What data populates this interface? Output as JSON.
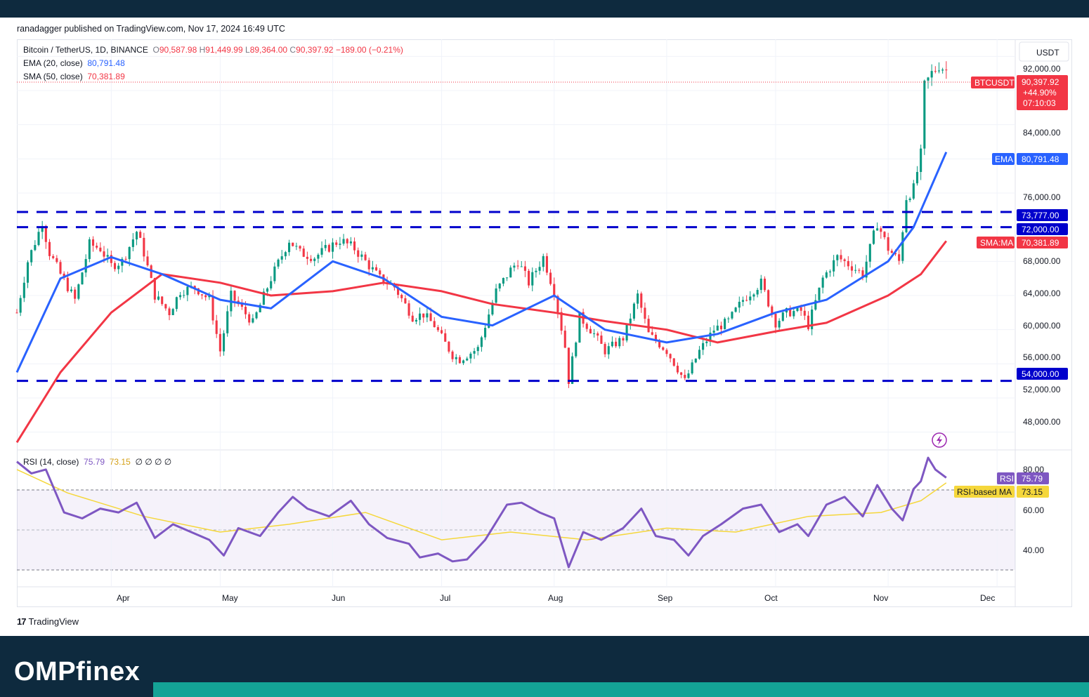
{
  "header": {
    "published": "ranadagger published on TradingView.com, Nov 17, 2024 16:49 UTC"
  },
  "legend": {
    "symbol": "Bitcoin / TetherUS, 1D, BINANCE",
    "o_label": "O",
    "o": "90,587.98",
    "h_label": "H",
    "h": "91,449.99",
    "l_label": "L",
    "l": "89,364.00",
    "c_label": "C",
    "c": "90,397.92",
    "change": "−189.00 (−0.21%)",
    "ema_label": "EMA (20, close)",
    "ema": "80,791.48",
    "sma_label": "SMA (50, close)",
    "sma": "70,381.89"
  },
  "rsi_legend": {
    "label": "RSI (14, close)",
    "value": "75.79",
    "ma": "73.15",
    "empty": "∅ ∅ ∅ ∅"
  },
  "price_scale": {
    "currency": "USDT",
    "ticks": [
      "92,000.00",
      "84,000.00",
      "76,000.00",
      "68,000.00",
      "64,000.00",
      "60,000.00",
      "56,000.00",
      "52,000.00",
      "48,000.00"
    ]
  },
  "rsi_scale": {
    "ticks": [
      "80.00",
      "60.00",
      "40.00"
    ]
  },
  "tags": {
    "symbol": "BTCUSDT",
    "price": "90,397.92",
    "pct": "+44.90%",
    "countdown": "07:10:03",
    "ema_name": "EMA",
    "ema_value": "80,791.48",
    "lvl1": "73,777.00",
    "lvl2": "72,000.00",
    "sma_name": "SMA:MA",
    "sma_value": "70,381.89",
    "lvl3": "54,000.00",
    "rsi_name": "RSI",
    "rsi_value": "75.79",
    "rsima_name": "RSI-based MA",
    "rsima_value": "73.15"
  },
  "time_axis": [
    "Apr",
    "May",
    "Jun",
    "Jul",
    "Aug",
    "Sep",
    "Oct",
    "Nov",
    "Dec"
  ],
  "footer": {
    "tv_logo": "TradingView",
    "brand": "OMPfinex"
  },
  "colors": {
    "up": "#089981",
    "down": "#f23645",
    "ema": "#2962ff",
    "sma": "#f23645",
    "levels": "#0000cc",
    "rsi": "#7e57c2",
    "rsi_ma": "#f5d73b",
    "dark": "#0e2a3e",
    "teal": "#14a396"
  },
  "chart_data": {
    "type": "candlestick",
    "symbol": "Bitcoin / TetherUS",
    "timeframe": "1D",
    "exchange": "BINANCE",
    "y_range": [
      46000,
      94000
    ],
    "x_range": [
      "2024-03-06",
      "2024-12-06"
    ],
    "x_ticks": [
      "2024-04-01",
      "2024-05-01",
      "2024-06-01",
      "2024-07-01",
      "2024-08-01",
      "2024-09-01",
      "2024-10-01",
      "2024-11-01",
      "2024-12-01"
    ],
    "last": {
      "open": 90587.98,
      "high": 91449.99,
      "low": 89364.0,
      "close": 90397.92,
      "change": -189.0,
      "change_pct": -0.21
    },
    "horizontal_levels": [
      73777,
      72000,
      54000
    ],
    "price_path": [
      [
        "2024-03-06",
        62000
      ],
      [
        "2024-03-09",
        68000
      ],
      [
        "2024-03-13",
        72500
      ],
      [
        "2024-03-15",
        69000
      ],
      [
        "2024-03-18",
        66500
      ],
      [
        "2024-03-22",
        63500
      ],
      [
        "2024-03-26",
        70000
      ],
      [
        "2024-03-29",
        69500
      ],
      [
        "2024-04-01",
        67500
      ],
      [
        "2024-04-04",
        68000
      ],
      [
        "2024-04-08",
        71500
      ],
      [
        "2024-04-10",
        69000
      ],
      [
        "2024-04-13",
        64000
      ],
      [
        "2024-04-17",
        62000
      ],
      [
        "2024-04-20",
        64500
      ],
      [
        "2024-04-24",
        65000
      ],
      [
        "2024-04-28",
        63500
      ],
      [
        "2024-05-01",
        57500
      ],
      [
        "2024-05-04",
        64000
      ],
      [
        "2024-05-10",
        60800
      ],
      [
        "2024-05-15",
        66000
      ],
      [
        "2024-05-20",
        70500
      ],
      [
        "2024-05-23",
        69000
      ],
      [
        "2024-05-27",
        68500
      ],
      [
        "2024-06-03",
        70500
      ],
      [
        "2024-06-07",
        69500
      ],
      [
        "2024-06-11",
        67500
      ],
      [
        "2024-06-14",
        66000
      ],
      [
        "2024-06-18",
        65000
      ],
      [
        "2024-06-23",
        61500
      ],
      [
        "2024-06-26",
        61800
      ],
      [
        "2024-06-29",
        60500
      ],
      [
        "2024-07-04",
        57000
      ],
      [
        "2024-07-06",
        56500
      ],
      [
        "2024-07-11",
        57800
      ],
      [
        "2024-07-16",
        64500
      ],
      [
        "2024-07-20",
        67000
      ],
      [
        "2024-07-22",
        68000
      ],
      [
        "2024-07-25",
        65500
      ],
      [
        "2024-07-29",
        68500
      ],
      [
        "2024-08-01",
        64500
      ],
      [
        "2024-08-04",
        58000
      ],
      [
        "2024-08-05",
        54000
      ],
      [
        "2024-08-08",
        61500
      ],
      [
        "2024-08-12",
        59500
      ],
      [
        "2024-08-15",
        57500
      ],
      [
        "2024-08-20",
        59000
      ],
      [
        "2024-08-24",
        64000
      ],
      [
        "2024-08-27",
        59500
      ],
      [
        "2024-09-01",
        57500
      ],
      [
        "2024-09-06",
        54000
      ],
      [
        "2024-09-10",
        57500
      ],
      [
        "2024-09-14",
        60000
      ],
      [
        "2024-09-18",
        61000
      ],
      [
        "2024-09-22",
        63500
      ],
      [
        "2024-09-27",
        65500
      ],
      [
        "2024-10-01",
        60800
      ],
      [
        "2024-10-04",
        62000
      ],
      [
        "2024-10-08",
        62200
      ],
      [
        "2024-10-10",
        60500
      ],
      [
        "2024-10-14",
        66000
      ],
      [
        "2024-10-18",
        68500
      ],
      [
        "2024-10-22",
        67400
      ],
      [
        "2024-10-25",
        66500
      ],
      [
        "2024-10-29",
        72500
      ],
      [
        "2024-11-01",
        69500
      ],
      [
        "2024-11-04",
        68000
      ],
      [
        "2024-11-06",
        75500
      ],
      [
        "2024-11-08",
        76500
      ],
      [
        "2024-11-10",
        80500
      ],
      [
        "2024-11-11",
        88500
      ],
      [
        "2024-11-13",
        90000
      ],
      [
        "2024-11-15",
        91000
      ],
      [
        "2024-11-17",
        90397.92
      ]
    ],
    "series": [
      {
        "name": "EMA (20, close)",
        "last": 80791.48,
        "points": [
          [
            "2024-03-06",
            55000
          ],
          [
            "2024-03-18",
            66000
          ],
          [
            "2024-04-01",
            68500
          ],
          [
            "2024-04-15",
            66500
          ],
          [
            "2024-05-01",
            63500
          ],
          [
            "2024-05-15",
            62500
          ],
          [
            "2024-06-01",
            68000
          ],
          [
            "2024-06-15",
            66000
          ],
          [
            "2024-07-01",
            61500
          ],
          [
            "2024-07-15",
            60500
          ],
          [
            "2024-08-01",
            64000
          ],
          [
            "2024-08-15",
            60000
          ],
          [
            "2024-09-01",
            58500
          ],
          [
            "2024-09-15",
            59500
          ],
          [
            "2024-10-01",
            62000
          ],
          [
            "2024-10-15",
            63500
          ],
          [
            "2024-11-01",
            68000
          ],
          [
            "2024-11-08",
            72000
          ],
          [
            "2024-11-17",
            80791.48
          ]
        ]
      },
      {
        "name": "SMA (50, close)",
        "last": 70381.89,
        "points": [
          [
            "2024-03-06",
            46800
          ],
          [
            "2024-03-18",
            55000
          ],
          [
            "2024-04-01",
            62000
          ],
          [
            "2024-04-15",
            66500
          ],
          [
            "2024-05-01",
            65500
          ],
          [
            "2024-05-15",
            64000
          ],
          [
            "2024-06-01",
            64500
          ],
          [
            "2024-06-15",
            65500
          ],
          [
            "2024-07-01",
            64500
          ],
          [
            "2024-07-15",
            63000
          ],
          [
            "2024-08-01",
            62000
          ],
          [
            "2024-08-15",
            61000
          ],
          [
            "2024-09-01",
            60000
          ],
          [
            "2024-09-15",
            58500
          ],
          [
            "2024-10-01",
            59800
          ],
          [
            "2024-10-15",
            60800
          ],
          [
            "2024-11-01",
            64000
          ],
          [
            "2024-11-10",
            66500
          ],
          [
            "2024-11-17",
            70381.89
          ]
        ]
      }
    ],
    "rsi": {
      "label": "RSI (14, close)",
      "value": 75.79,
      "ma": 73.15,
      "bands": [
        70,
        50,
        30
      ],
      "y_range": [
        20,
        90
      ],
      "points": [
        [
          "2024-03-06",
          84
        ],
        [
          "2024-03-10",
          78
        ],
        [
          "2024-03-14",
          80
        ],
        [
          "2024-03-19",
          58
        ],
        [
          "2024-03-24",
          55
        ],
        [
          "2024-03-29",
          60
        ],
        [
          "2024-04-03",
          58
        ],
        [
          "2024-04-08",
          63
        ],
        [
          "2024-04-13",
          45
        ],
        [
          "2024-04-18",
          52
        ],
        [
          "2024-04-23",
          48
        ],
        [
          "2024-04-28",
          44
        ],
        [
          "2024-05-02",
          36
        ],
        [
          "2024-05-06",
          50
        ],
        [
          "2024-05-12",
          46
        ],
        [
          "2024-05-17",
          58
        ],
        [
          "2024-05-21",
          66
        ],
        [
          "2024-05-25",
          60
        ],
        [
          "2024-05-31",
          56
        ],
        [
          "2024-06-06",
          64
        ],
        [
          "2024-06-11",
          52
        ],
        [
          "2024-06-16",
          45
        ],
        [
          "2024-06-22",
          42
        ],
        [
          "2024-06-25",
          35
        ],
        [
          "2024-06-30",
          37
        ],
        [
          "2024-07-04",
          33
        ],
        [
          "2024-07-08",
          34
        ],
        [
          "2024-07-13",
          44
        ],
        [
          "2024-07-19",
          62
        ],
        [
          "2024-07-23",
          63
        ],
        [
          "2024-07-28",
          58
        ],
        [
          "2024-08-01",
          55
        ],
        [
          "2024-08-05",
          30
        ],
        [
          "2024-08-09",
          48
        ],
        [
          "2024-08-14",
          44
        ],
        [
          "2024-08-20",
          50
        ],
        [
          "2024-08-25",
          60
        ],
        [
          "2024-08-29",
          46
        ],
        [
          "2024-09-03",
          44
        ],
        [
          "2024-09-07",
          36
        ],
        [
          "2024-09-11",
          46
        ],
        [
          "2024-09-16",
          52
        ],
        [
          "2024-09-22",
          60
        ],
        [
          "2024-09-27",
          62
        ],
        [
          "2024-10-02",
          48
        ],
        [
          "2024-10-07",
          52
        ],
        [
          "2024-10-10",
          46
        ],
        [
          "2024-10-15",
          62
        ],
        [
          "2024-10-20",
          66
        ],
        [
          "2024-10-25",
          56
        ],
        [
          "2024-10-29",
          72
        ],
        [
          "2024-11-02",
          60
        ],
        [
          "2024-11-05",
          54
        ],
        [
          "2024-11-08",
          70
        ],
        [
          "2024-11-10",
          74
        ],
        [
          "2024-11-12",
          86
        ],
        [
          "2024-11-14",
          80
        ],
        [
          "2024-11-17",
          75.79
        ]
      ],
      "ma_points": [
        [
          "2024-03-06",
          80
        ],
        [
          "2024-03-20",
          68
        ],
        [
          "2024-04-10",
          56
        ],
        [
          "2024-05-01",
          48
        ],
        [
          "2024-05-20",
          52
        ],
        [
          "2024-06-10",
          58
        ],
        [
          "2024-07-01",
          44
        ],
        [
          "2024-07-20",
          48
        ],
        [
          "2024-08-10",
          44
        ],
        [
          "2024-09-01",
          50
        ],
        [
          "2024-09-20",
          48
        ],
        [
          "2024-10-10",
          56
        ],
        [
          "2024-10-30",
          58
        ],
        [
          "2024-11-10",
          64
        ],
        [
          "2024-11-17",
          73.15
        ]
      ]
    }
  }
}
